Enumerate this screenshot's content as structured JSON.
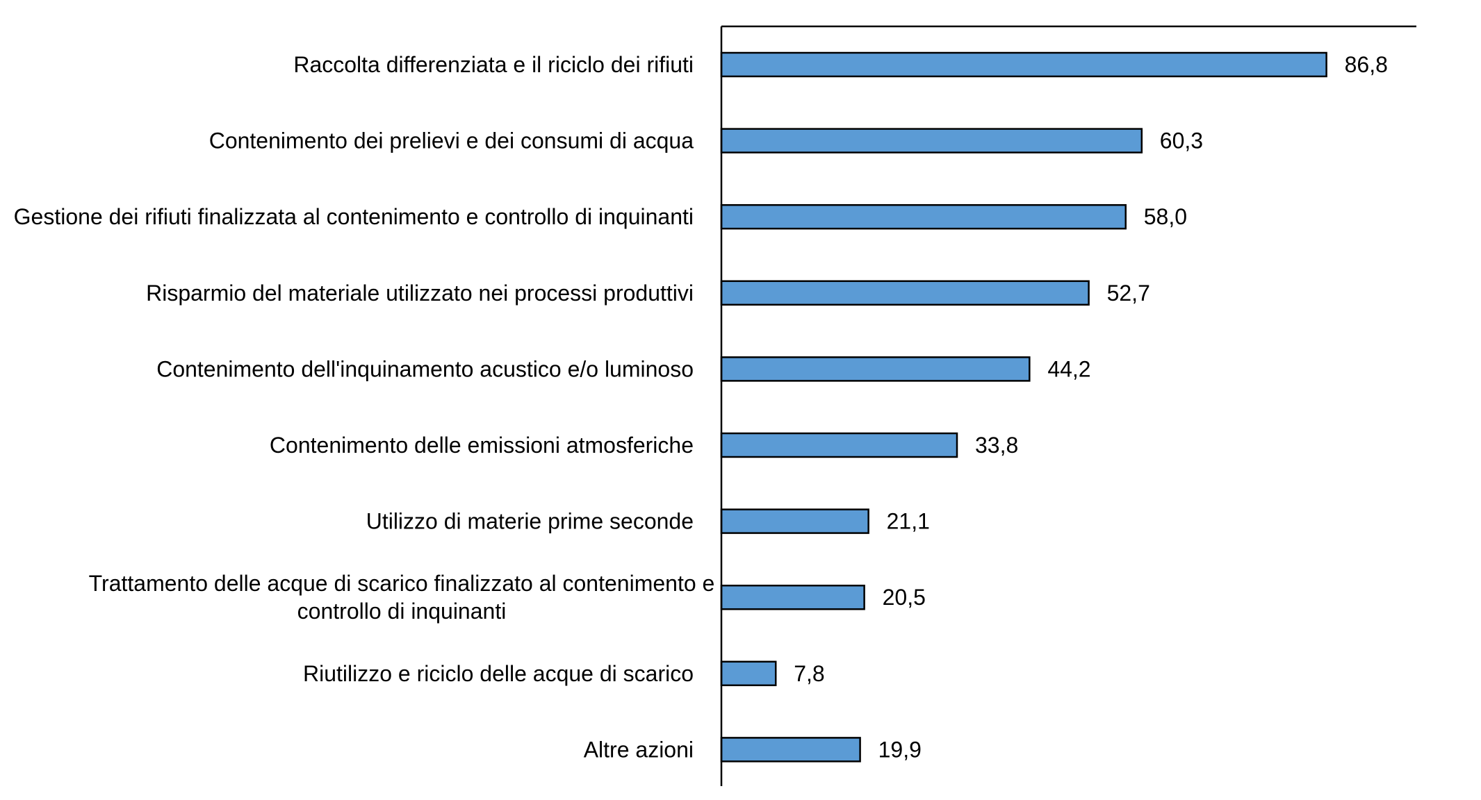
{
  "chart_data": {
    "type": "bar",
    "orientation": "horizontal",
    "categories": [
      "Raccolta differenziata e il riciclo dei rifiuti",
      "Contenimento dei prelievi e dei consumi di acqua",
      "Gestione dei rifiuti finalizzata al contenimento e controllo di inquinanti",
      "Risparmio del materiale utilizzato nei processi produttivi",
      "Contenimento dell'inquinamento acustico e/o luminoso",
      "Contenimento delle emissioni atmosferiche",
      "Utilizzo di materie prime seconde",
      "Trattamento delle acque di scarico finalizzato al contenimento e controllo di inquinanti",
      "Riutilizzo e riciclo delle acque di scarico",
      "Altre azioni"
    ],
    "category_lines": [
      [
        "Raccolta differenziata e il riciclo dei rifiuti"
      ],
      [
        "Contenimento dei prelievi e dei consumi di acqua"
      ],
      [
        "Gestione dei rifiuti finalizzata al contenimento e controllo di inquinanti"
      ],
      [
        "Risparmio del materiale utilizzato nei processi produttivi"
      ],
      [
        "Contenimento dell'inquinamento acustico e/o luminoso"
      ],
      [
        "Contenimento delle emissioni atmosferiche"
      ],
      [
        "Utilizzo di materie prime seconde"
      ],
      [
        "Trattamento delle acque di scarico finalizzato al contenimento e",
        "controllo di inquinanti"
      ],
      [
        "Riutilizzo e riciclo delle acque di scarico"
      ],
      [
        "Altre azioni"
      ]
    ],
    "values": [
      86.8,
      60.3,
      58.0,
      52.7,
      44.2,
      33.8,
      21.1,
      20.5,
      7.8,
      19.9
    ],
    "data_labels": [
      "86,8",
      "60,3",
      "58,0",
      "52,7",
      "44,2",
      "33,8",
      "21,1",
      "20,5",
      "7,8",
      "19,9"
    ],
    "xlim": [
      0,
      100
    ],
    "grid": false,
    "legend": "none",
    "bar_color": "#5B9BD5",
    "bar_edge_color": "#000000",
    "title": "",
    "xlabel": "",
    "ylabel": ""
  }
}
